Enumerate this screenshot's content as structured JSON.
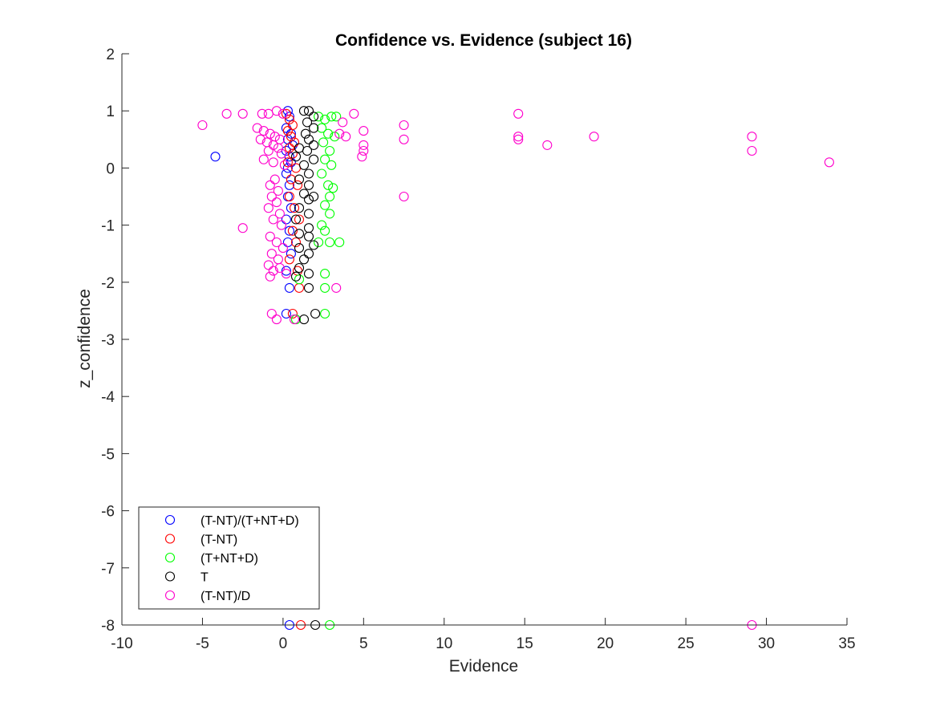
{
  "chart_data": {
    "type": "scatter",
    "title": "Confidence vs. Evidence (subject 16)",
    "xlabel": "Evidence",
    "ylabel": "z_confidence",
    "xlim": [
      -10,
      35
    ],
    "ylim": [
      -8,
      2
    ],
    "xticks": [
      -10,
      -5,
      0,
      5,
      10,
      15,
      20,
      25,
      30,
      35
    ],
    "yticks": [
      -8,
      -7,
      -6,
      -5,
      -4,
      -3,
      -2,
      -1,
      0,
      1,
      2
    ],
    "grid": false,
    "legend_position": "bottom-left",
    "marker": "open-circle",
    "series": [
      {
        "name": "(T-NT)/(T+NT+D)",
        "color": "#0000ff",
        "points": [
          [
            -4.2,
            0.2
          ],
          [
            0.3,
            1.0
          ],
          [
            0.4,
            0.9
          ],
          [
            0.2,
            0.7
          ],
          [
            0.5,
            0.6
          ],
          [
            0.3,
            0.5
          ],
          [
            0.6,
            0.4
          ],
          [
            0.2,
            0.3
          ],
          [
            0.4,
            0.2
          ],
          [
            0.5,
            0.1
          ],
          [
            0.3,
            0.0
          ],
          [
            0.2,
            -0.1
          ],
          [
            0.4,
            -0.3
          ],
          [
            0.3,
            -0.5
          ],
          [
            0.5,
            -0.7
          ],
          [
            0.2,
            -0.9
          ],
          [
            0.4,
            -1.1
          ],
          [
            0.3,
            -1.3
          ],
          [
            0.5,
            -1.5
          ],
          [
            0.2,
            -1.8
          ],
          [
            0.4,
            -2.1
          ],
          [
            0.2,
            -2.55
          ],
          [
            0.4,
            -8.0
          ]
        ]
      },
      {
        "name": "(T-NT)",
        "color": "#ff0000",
        "points": [
          [
            0.2,
            0.95
          ],
          [
            0.4,
            0.85
          ],
          [
            0.6,
            0.75
          ],
          [
            0.3,
            0.65
          ],
          [
            0.5,
            0.55
          ],
          [
            0.7,
            0.45
          ],
          [
            0.4,
            0.35
          ],
          [
            0.6,
            0.25
          ],
          [
            0.3,
            0.1
          ],
          [
            0.8,
            0.0
          ],
          [
            0.5,
            -0.2
          ],
          [
            0.9,
            -0.3
          ],
          [
            0.4,
            -0.5
          ],
          [
            0.7,
            -0.7
          ],
          [
            1.0,
            -0.9
          ],
          [
            0.6,
            -1.1
          ],
          [
            0.8,
            -1.3
          ],
          [
            0.4,
            -1.6
          ],
          [
            0.9,
            -1.8
          ],
          [
            1.0,
            -2.1
          ],
          [
            0.6,
            -2.55
          ],
          [
            1.1,
            -8.0
          ]
        ]
      },
      {
        "name": "(T+NT+D)",
        "color": "#00ff00",
        "points": [
          [
            2.2,
            0.9
          ],
          [
            2.6,
            0.85
          ],
          [
            3.0,
            0.9
          ],
          [
            3.3,
            0.9
          ],
          [
            2.4,
            0.7
          ],
          [
            2.8,
            0.6
          ],
          [
            3.2,
            0.55
          ],
          [
            2.5,
            0.45
          ],
          [
            2.9,
            0.3
          ],
          [
            2.6,
            0.15
          ],
          [
            3.0,
            0.05
          ],
          [
            2.4,
            -0.1
          ],
          [
            2.8,
            -0.3
          ],
          [
            3.1,
            -0.35
          ],
          [
            2.9,
            -0.5
          ],
          [
            2.6,
            -0.65
          ],
          [
            2.9,
            -0.8
          ],
          [
            2.4,
            -1.0
          ],
          [
            2.6,
            -1.1
          ],
          [
            2.2,
            -1.3
          ],
          [
            2.9,
            -1.3
          ],
          [
            3.5,
            -1.3
          ],
          [
            2.6,
            -1.85
          ],
          [
            1.0,
            -1.95
          ],
          [
            2.6,
            -2.1
          ],
          [
            2.6,
            -2.55
          ],
          [
            0.8,
            -2.65
          ],
          [
            2.9,
            -8.0
          ]
        ]
      },
      {
        "name": "T",
        "color": "#000000",
        "points": [
          [
            1.3,
            1.0
          ],
          [
            1.6,
            1.0
          ],
          [
            1.9,
            0.9
          ],
          [
            1.5,
            0.8
          ],
          [
            1.9,
            0.7
          ],
          [
            1.4,
            0.6
          ],
          [
            1.6,
            0.5
          ],
          [
            1.9,
            0.4
          ],
          [
            1.0,
            0.35
          ],
          [
            1.5,
            0.3
          ],
          [
            0.8,
            0.2
          ],
          [
            1.9,
            0.15
          ],
          [
            1.3,
            0.05
          ],
          [
            1.6,
            -0.1
          ],
          [
            1.0,
            -0.2
          ],
          [
            1.6,
            -0.3
          ],
          [
            1.3,
            -0.45
          ],
          [
            1.6,
            -0.55
          ],
          [
            1.9,
            -0.5
          ],
          [
            1.0,
            -0.7
          ],
          [
            1.6,
            -0.8
          ],
          [
            0.8,
            -0.9
          ],
          [
            1.6,
            -1.05
          ],
          [
            1.0,
            -1.15
          ],
          [
            1.6,
            -1.2
          ],
          [
            1.9,
            -1.35
          ],
          [
            1.0,
            -1.4
          ],
          [
            1.6,
            -1.5
          ],
          [
            1.3,
            -1.6
          ],
          [
            1.0,
            -1.75
          ],
          [
            1.6,
            -1.85
          ],
          [
            0.8,
            -1.9
          ],
          [
            1.6,
            -2.1
          ],
          [
            2.0,
            -2.55
          ],
          [
            1.3,
            -2.65
          ],
          [
            2.0,
            -8.0
          ]
        ]
      },
      {
        "name": "(T-NT)/D",
        "color": "#ff00cc",
        "points": [
          [
            -5.0,
            0.75
          ],
          [
            -3.5,
            0.95
          ],
          [
            -2.5,
            0.95
          ],
          [
            -1.3,
            0.95
          ],
          [
            -0.9,
            0.95
          ],
          [
            -0.4,
            1.0
          ],
          [
            0.0,
            0.95
          ],
          [
            -1.6,
            0.7
          ],
          [
            -1.2,
            0.65
          ],
          [
            -0.8,
            0.6
          ],
          [
            -0.5,
            0.55
          ],
          [
            -0.2,
            0.5
          ],
          [
            -1.0,
            0.45
          ],
          [
            -0.6,
            0.4
          ],
          [
            -1.4,
            0.5
          ],
          [
            -0.3,
            0.35
          ],
          [
            -0.9,
            0.3
          ],
          [
            -0.1,
            0.25
          ],
          [
            -1.2,
            0.15
          ],
          [
            -0.6,
            0.1
          ],
          [
            0.1,
            0.05
          ],
          [
            -0.5,
            -0.2
          ],
          [
            -0.8,
            -0.3
          ],
          [
            -0.3,
            -0.4
          ],
          [
            -0.7,
            -0.5
          ],
          [
            -0.4,
            -0.6
          ],
          [
            -0.9,
            -0.7
          ],
          [
            -0.2,
            -0.8
          ],
          [
            -0.6,
            -0.9
          ],
          [
            -0.1,
            -1.0
          ],
          [
            -2.5,
            -1.05
          ],
          [
            -0.8,
            -1.2
          ],
          [
            -0.4,
            -1.3
          ],
          [
            0.0,
            -1.4
          ],
          [
            -0.7,
            -1.5
          ],
          [
            -0.3,
            -1.6
          ],
          [
            -0.9,
            -1.7
          ],
          [
            -0.6,
            -1.8
          ],
          [
            -0.2,
            -1.75
          ],
          [
            -0.8,
            -1.9
          ],
          [
            0.2,
            -1.85
          ],
          [
            3.3,
            -2.1
          ],
          [
            -0.7,
            -2.55
          ],
          [
            -0.4,
            -2.65
          ],
          [
            0.7,
            -2.65
          ],
          [
            3.5,
            0.6
          ],
          [
            3.9,
            0.55
          ],
          [
            3.7,
            0.8
          ],
          [
            4.4,
            0.95
          ],
          [
            5.0,
            0.65
          ],
          [
            5.0,
            0.4
          ],
          [
            5.0,
            0.3
          ],
          [
            4.9,
            0.2
          ],
          [
            7.5,
            0.75
          ],
          [
            7.5,
            0.5
          ],
          [
            7.5,
            -0.5
          ],
          [
            14.6,
            0.95
          ],
          [
            14.6,
            0.55
          ],
          [
            14.6,
            0.5
          ],
          [
            16.4,
            0.4
          ],
          [
            19.3,
            0.55
          ],
          [
            29.1,
            0.55
          ],
          [
            29.1,
            0.3
          ],
          [
            33.9,
            0.1
          ],
          [
            29.1,
            -8.0
          ]
        ]
      }
    ]
  }
}
